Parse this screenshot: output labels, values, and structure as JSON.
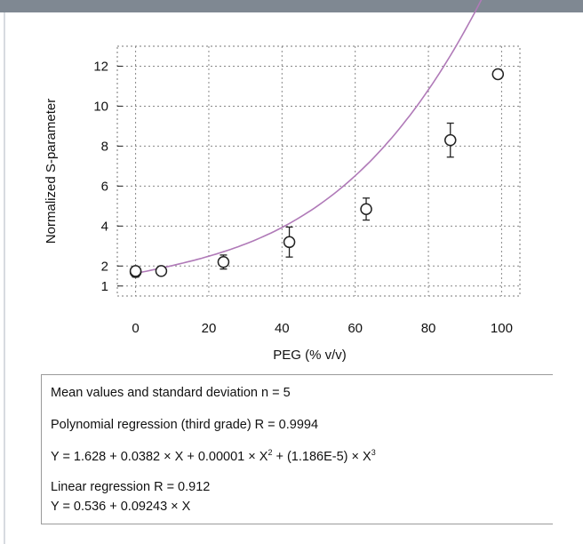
{
  "chart_data": {
    "type": "scatter",
    "xlabel": "PEG (% v/v)",
    "ylabel": "Normalized S-parameter",
    "xlim": [
      -5,
      105
    ],
    "ylim": [
      0.5,
      13
    ],
    "x_ticks": [
      "0",
      "20",
      "40",
      "60",
      "80",
      "100"
    ],
    "y_ticks": [
      "1",
      "2",
      "4",
      "6",
      "8",
      "10",
      "12"
    ],
    "grid": true,
    "points": [
      {
        "x": 0,
        "y": 1.7,
        "err": 0.25
      },
      {
        "x": 0,
        "y": 1.75,
        "err": 0.2
      },
      {
        "x": 7,
        "y": 1.75,
        "err": 0.15
      },
      {
        "x": 24,
        "y": 2.2,
        "err": 0.35
      },
      {
        "x": 42,
        "y": 3.2,
        "err": 0.75
      },
      {
        "x": 63,
        "y": 4.85,
        "err": 0.55
      },
      {
        "x": 86,
        "y": 8.3,
        "err": 0.85
      },
      {
        "x": 99,
        "y": 11.6,
        "err": 0.2
      }
    ],
    "fit_curve": {
      "type": "polynomial",
      "coefficients": [
        1.628,
        0.0382,
        1e-05,
        1.186e-05
      ],
      "color": "#b07ab8"
    },
    "legend_lines": [
      "Mean values and standard deviation n = 5",
      "Polynomial regression (third grade) R = 0.9994",
      "Y = 1.628 + 0.0382 × X + 0.00001 × X",
      "Linear regression R = 0.912",
      "Y = 0.536 + 0.09243 × X"
    ],
    "equation_parts": {
      "exp2": "2",
      "mid": " + (1.186E-5) × X",
      "exp3": "3"
    }
  }
}
